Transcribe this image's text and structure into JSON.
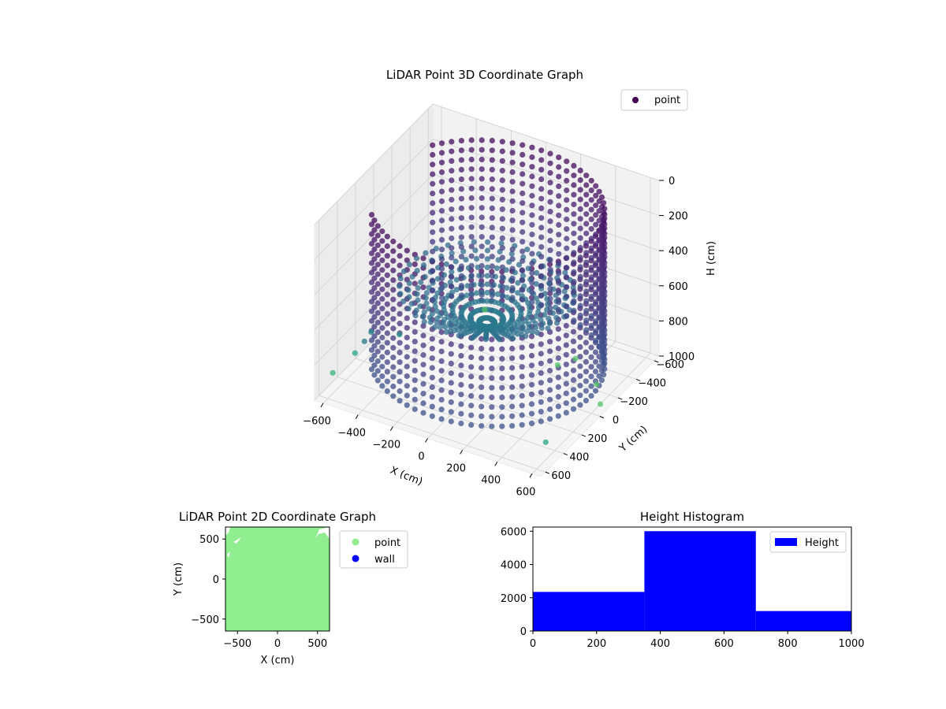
{
  "chart_data": [
    {
      "type": "scatter3d",
      "title": "LiDAR Point 3D Coordinate Graph",
      "xlabel": "X (cm)",
      "ylabel": "Y (cm)",
      "zlabel": "H (cm)",
      "xlim": [
        -650,
        650
      ],
      "ylim": [
        -650,
        650
      ],
      "zlim": [
        0,
        1000
      ],
      "z_inverted": true,
      "xticks": [
        -600,
        -400,
        -200,
        0,
        200,
        400,
        600
      ],
      "yticks": [
        -600,
        -400,
        -200,
        0,
        200,
        400,
        600
      ],
      "zticks": [
        0,
        200,
        400,
        600,
        800,
        1000
      ],
      "colormap": "viridis",
      "legend": {
        "placement": "upper-right",
        "entries": [
          {
            "label": "point",
            "color": "#440154"
          }
        ]
      },
      "grid": true,
      "series": [
        {
          "name": "point",
          "structure": "cylindrical wall scan",
          "wall_radius_cm": 600,
          "wall_height_range_cm": [
            0,
            1000
          ],
          "floor_depth_cm": 700,
          "floor_bowl_radius_cm": 450,
          "outlier_points": [
            {
              "x": -600,
              "y": 300,
              "h": 900
            },
            {
              "x": -650,
              "y": 450,
              "h": 950
            },
            {
              "x": -560,
              "y": 200,
              "h": 820
            },
            {
              "x": -450,
              "y": 100,
              "h": 850
            },
            {
              "x": -520,
              "y": 350,
              "h": 780
            },
            {
              "x": 300,
              "y": -400,
              "h": 1000
            },
            {
              "x": 250,
              "y": -300,
              "h": 1000
            },
            {
              "x": 500,
              "y": -250,
              "h": 1000
            },
            {
              "x": 600,
              "y": -100,
              "h": 1000
            },
            {
              "x": 600,
              "y": 500,
              "h": 900
            },
            {
              "x": -300,
              "y": -550,
              "h": 1000
            }
          ]
        }
      ]
    },
    {
      "type": "scatter",
      "title": "LiDAR Point 2D Coordinate Graph",
      "xlabel": "X (cm)",
      "ylabel": "Y (cm)",
      "xlim": [
        -650,
        650
      ],
      "ylim": [
        -650,
        650
      ],
      "xticks": [
        -500,
        0,
        500
      ],
      "yticks": [
        -500,
        0,
        500
      ],
      "legend": {
        "placement": "outside-right",
        "entries": [
          {
            "label": "point",
            "color": "#90ee90"
          },
          {
            "label": "wall",
            "color": "#0000ff"
          }
        ]
      },
      "series": [
        {
          "name": "point",
          "color": "#90ee90",
          "coverage": "fills nearly the entire plot area"
        },
        {
          "name": "wall",
          "color": "#0000ff",
          "coverage": "not visible"
        }
      ]
    },
    {
      "type": "bar",
      "title": "Height Histogram",
      "xlim": [
        0,
        1000
      ],
      "ylim": [
        0,
        6250
      ],
      "xticks": [
        0,
        200,
        400,
        600,
        800,
        1000
      ],
      "yticks": [
        0,
        2000,
        4000,
        6000
      ],
      "legend": {
        "placement": "upper-right",
        "entries": [
          {
            "label": "Height",
            "color": "#0000ff"
          }
        ]
      },
      "bins": [
        {
          "start": 0,
          "end": 350,
          "count": 2350
        },
        {
          "start": 350,
          "end": 700,
          "count": 6000
        },
        {
          "start": 700,
          "end": 1000,
          "count": 1200
        }
      ],
      "color": "#0000ff"
    }
  ]
}
